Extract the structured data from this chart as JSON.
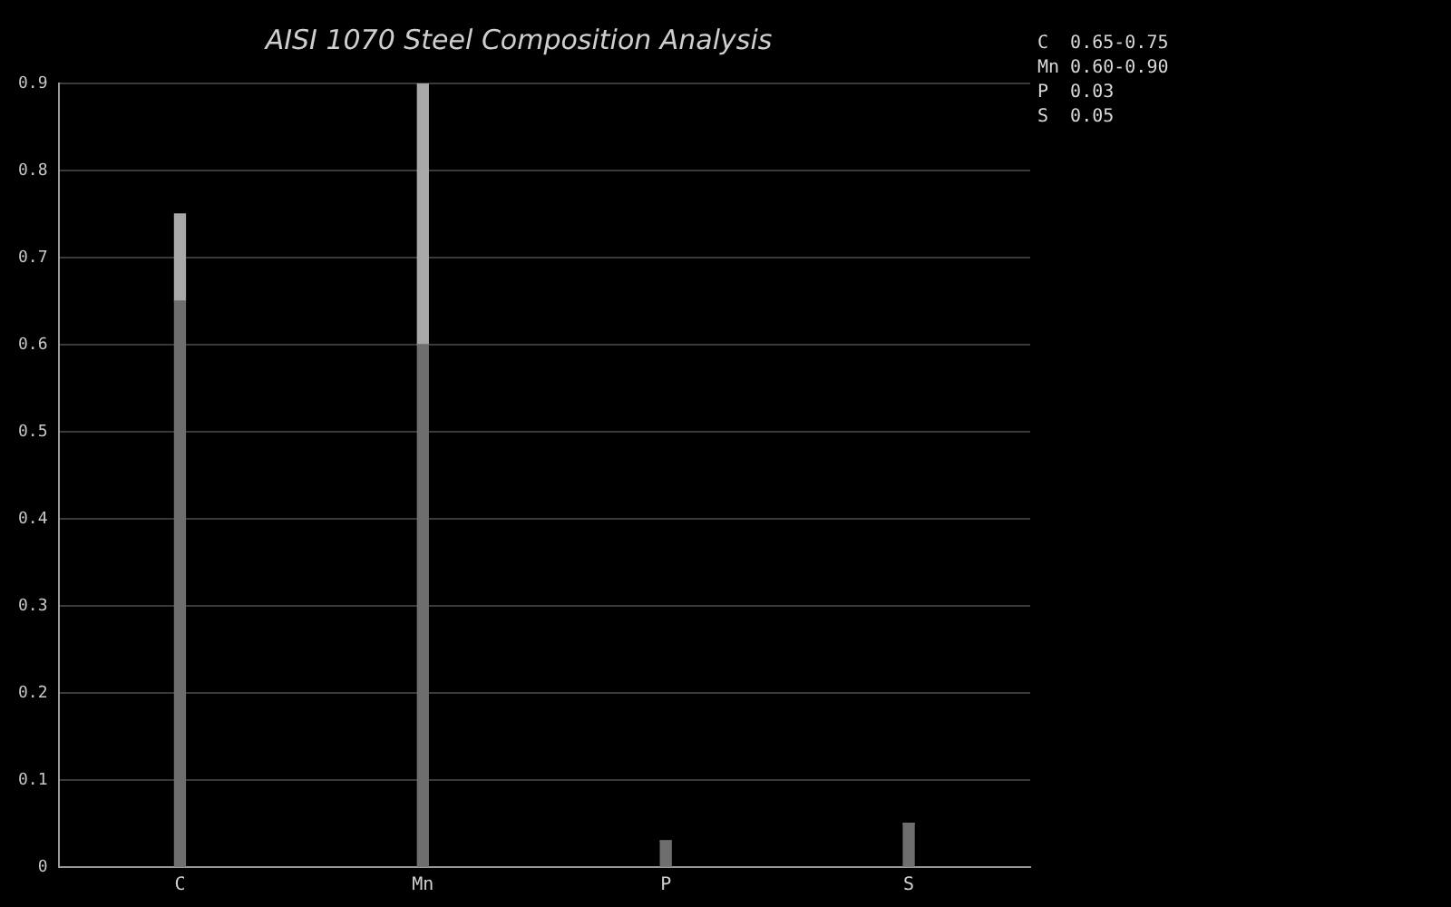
{
  "chart_data": {
    "type": "bar",
    "title": "AISI 1070 Steel Composition Analysis",
    "categories": [
      "C",
      "Mn",
      "P",
      "S"
    ],
    "stacked": true,
    "series": [
      {
        "color": "#6e6e6e",
        "values": [
          0.65,
          0.6,
          0.03,
          0.05
        ]
      },
      {
        "color": "#a8a8a8",
        "values": [
          0.1,
          0.3,
          0,
          0
        ]
      }
    ],
    "ylim": [
      0,
      0.9
    ],
    "yticks": [
      0,
      0.1,
      0.2,
      0.3,
      0.4,
      0.5,
      0.6,
      0.7,
      0.8,
      0.9
    ],
    "grid": "y",
    "legend": false,
    "annotations": [
      "C  0.65-0.75",
      "Mn 0.60-0.90",
      "P  0.03",
      "S  0.05"
    ]
  }
}
